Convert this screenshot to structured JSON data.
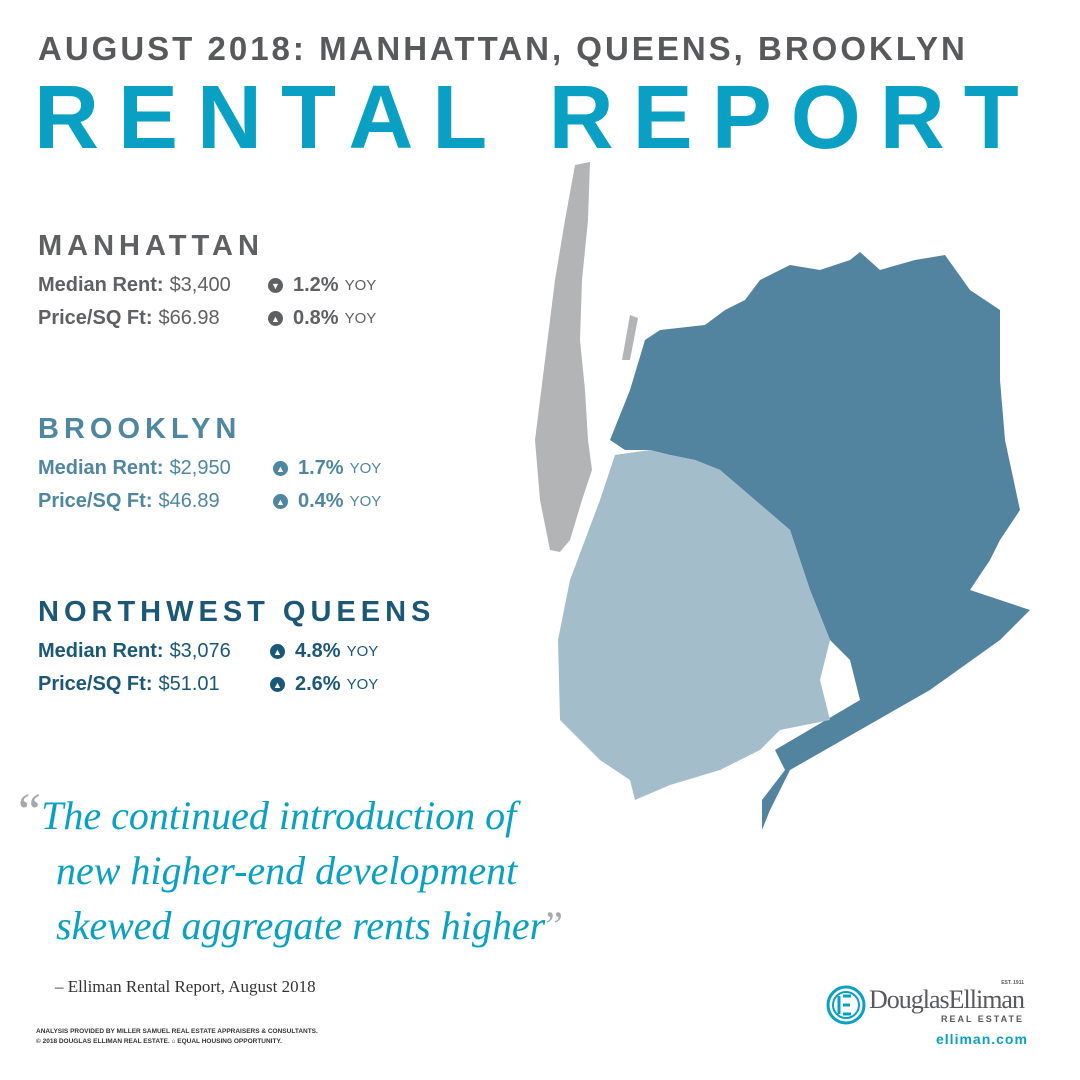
{
  "header": {
    "subtitle": "AUGUST 2018: MANHATTAN, QUEENS, BROOKLYN",
    "title": "RENTAL REPORT"
  },
  "colors": {
    "accent": "#0aa0c3",
    "manhattan": "#5f6062",
    "brooklyn": "#4f86a0",
    "queens": "#1b5878",
    "map_manhattan": "#b3b4b6",
    "map_brooklyn": "#a3bdca",
    "map_queens": "#52849f"
  },
  "markets": [
    {
      "name": "MANHATTAN",
      "rows": [
        {
          "label": "Median Rent:",
          "value": "$3,400",
          "direction": "down",
          "change": "1.2%",
          "unit": "YOY"
        },
        {
          "label": "Price/SQ Ft:",
          "value": "$66.98",
          "direction": "up",
          "change": "0.8%",
          "unit": "YOY"
        }
      ]
    },
    {
      "name": "BROOKLYN",
      "rows": [
        {
          "label": "Median Rent:",
          "value": "$2,950",
          "direction": "up",
          "change": "1.7%",
          "unit": "YOY"
        },
        {
          "label": "Price/SQ Ft:",
          "value": "$46.89",
          "direction": "up",
          "change": "0.4%",
          "unit": "YOY"
        }
      ]
    },
    {
      "name": "NORTHWEST QUEENS",
      "rows": [
        {
          "label": "Median Rent:",
          "value": "$3,076",
          "direction": "up",
          "change": "4.8%",
          "unit": "YOY"
        },
        {
          "label": "Price/SQ Ft:",
          "value": "$51.01",
          "direction": "up",
          "change": "2.6%",
          "unit": "YOY"
        }
      ]
    }
  ],
  "quote": {
    "open": "“",
    "lines": [
      "The continued introduction of",
      "new higher-end development",
      "skewed aggregate rents higher"
    ],
    "close": "”",
    "attribution": "– Elliman Rental Report, August 2018"
  },
  "footer": {
    "legal_1": "ANALYSIS PROVIDED BY MILLER SAMUEL REAL ESTATE APPRAISERS & CONSULTANTS.",
    "legal_2": "© 2018 DOUGLAS ELLIMAN REAL ESTATE. ⌂ EQUAL HOUSING OPPORTUNITY.",
    "logo_text": "DouglasElliman",
    "logo_est": "EST. 1911",
    "logo_sub": "REAL ESTATE",
    "url": "elliman.com"
  }
}
